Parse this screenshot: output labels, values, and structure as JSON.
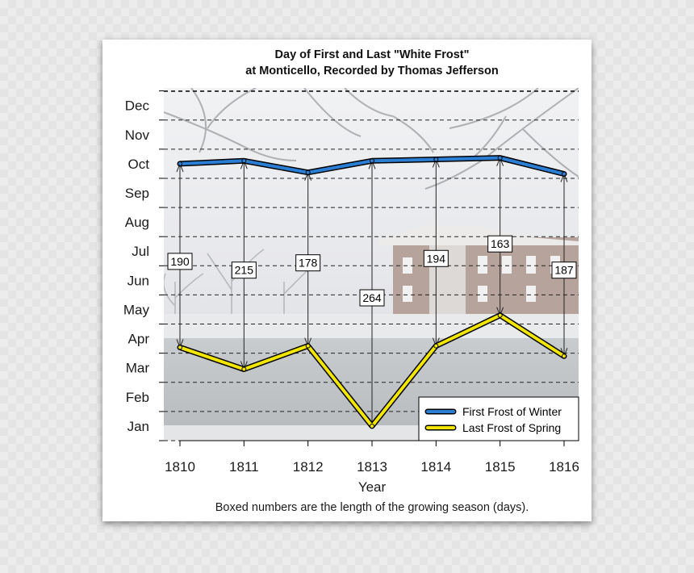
{
  "chart_data": {
    "type": "line",
    "title": "Day of First and Last \"White Frost\"",
    "subtitle": "at Monticello, Recorded by Thomas Jefferson",
    "xlabel": "Year",
    "ylabel": "",
    "caption": "Boxed numbers are the length of the growing season (days).",
    "x": [
      "1810",
      "1811",
      "1812",
      "1813",
      "1814",
      "1815",
      "1816"
    ],
    "y_ticks": [
      "Jan",
      "Feb",
      "Mar",
      "Apr",
      "May",
      "Jun",
      "Jul",
      "Aug",
      "Sep",
      "Oct",
      "Nov",
      "Dec"
    ],
    "y_unit": "month of year (1 = Jan, 12 = Dec)",
    "ylim": [
      0.5,
      12.6
    ],
    "grid": "horizontal dashed",
    "legend_position": "bottom-right",
    "background": "snowy Monticello photograph",
    "series": [
      {
        "name": "First Frost of Winter",
        "color": "#2a7fd4",
        "values": [
          10.0,
          10.1,
          9.7,
          10.1,
          10.15,
          10.2,
          9.65
        ]
      },
      {
        "name": "Last Frost of Spring",
        "color": "#f2e600",
        "values": [
          3.7,
          2.95,
          3.75,
          1.0,
          3.75,
          4.8,
          3.4
        ]
      }
    ],
    "growing_season_days": [
      190,
      215,
      178,
      264,
      194,
      163,
      187
    ],
    "growing_season_label_level": [
      6.65,
      6.35,
      6.6,
      5.4,
      6.75,
      7.25,
      6.35
    ]
  }
}
